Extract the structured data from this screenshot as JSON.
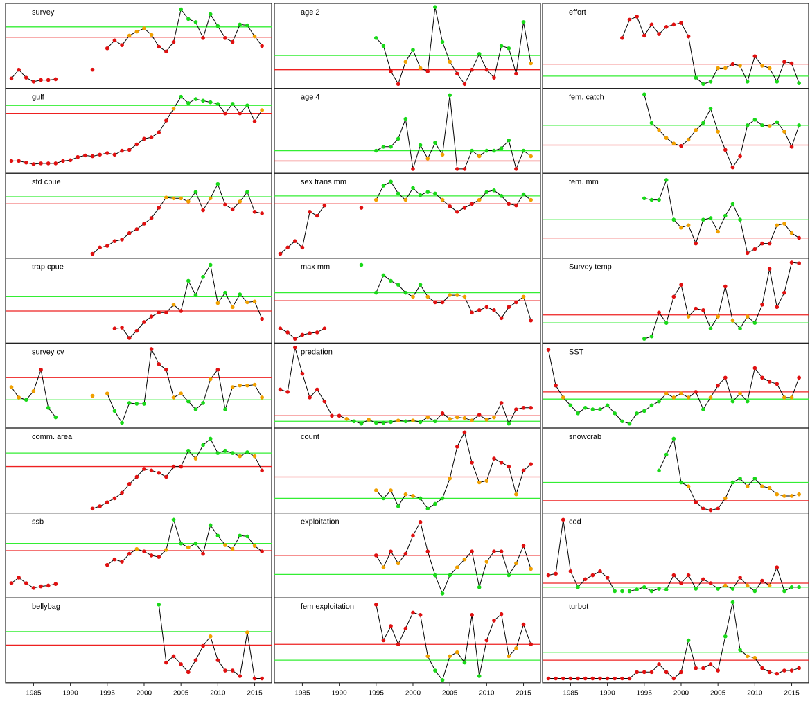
{
  "chart_data": {
    "type": "line",
    "x": [
      1982,
      1983,
      1984,
      1985,
      1986,
      1987,
      1988,
      1989,
      1990,
      1991,
      1992,
      1993,
      1994,
      1995,
      1996,
      1997,
      1998,
      1999,
      2000,
      2001,
      2002,
      2003,
      2004,
      2005,
      2006,
      2007,
      2008,
      2009,
      2010,
      2011,
      2012,
      2013,
      2014,
      2015,
      2016
    ],
    "xlim": [
      1981.2,
      2017.3
    ],
    "xticks": [
      1985,
      1990,
      1995,
      2000,
      2005,
      2010,
      2015
    ],
    "ylim": [
      0,
      100
    ],
    "colors": {
      "good": "#19d819",
      "bad": "#e01010",
      "mid": "#f0a000",
      "line": "#000000",
      "good_line": "#33ee33",
      "bad_line": "#ee2020"
    },
    "panels": [
      {
        "title": "survey",
        "good_level": 74,
        "bad_level": 61,
        "values": [
          9,
          20,
          10,
          5,
          7,
          7,
          8,
          null,
          null,
          null,
          null,
          20,
          null,
          47,
          57,
          51,
          63,
          68,
          72,
          64,
          49,
          43,
          55,
          96,
          84,
          80,
          60,
          90,
          75,
          60,
          55,
          77,
          76,
          62,
          50
        ]
      },
      {
        "title": "gulf",
        "good_level": 82,
        "bad_level": 72,
        "values": [
          12,
          12,
          10,
          8,
          9,
          9,
          9,
          12,
          13,
          17,
          19,
          18,
          20,
          22,
          20,
          25,
          26,
          33,
          40,
          42,
          48,
          63,
          78,
          93,
          85,
          90,
          88,
          86,
          84,
          72,
          84,
          72,
          82,
          62,
          76
        ]
      },
      {
        "title": "std cpue",
        "good_level": 74,
        "bad_level": 65,
        "values": [
          null,
          null,
          null,
          null,
          null,
          null,
          null,
          null,
          null,
          null,
          null,
          2,
          10,
          12,
          18,
          20,
          28,
          33,
          40,
          47,
          60,
          73,
          72,
          72,
          68,
          80,
          57,
          72,
          90,
          64,
          58,
          68,
          80,
          55,
          53
        ]
      },
      {
        "title": "trap cpue",
        "good_level": 55,
        "bad_level": 37,
        "values": [
          null,
          null,
          null,
          null,
          null,
          null,
          null,
          null,
          null,
          null,
          null,
          null,
          null,
          null,
          15,
          16,
          3,
          12,
          23,
          30,
          35,
          35,
          45,
          37,
          75,
          57,
          80,
          95,
          47,
          60,
          42,
          58,
          48,
          49,
          27
        ]
      },
      {
        "title": "survey cv",
        "good_level": 32,
        "bad_level": 60,
        "values": [
          48,
          35,
          32,
          43,
          70,
          22,
          10,
          null,
          null,
          null,
          null,
          37,
          null,
          40,
          18,
          3,
          28,
          27,
          27,
          96,
          77,
          70,
          35,
          40,
          30,
          20,
          28,
          58,
          70,
          20,
          48,
          50,
          50,
          51,
          35
        ]
      },
      {
        "title": "comm. area",
        "good_level": 72,
        "bad_level": 55,
        "values": [
          null,
          null,
          null,
          null,
          null,
          null,
          null,
          null,
          null,
          null,
          null,
          2,
          5,
          10,
          15,
          22,
          33,
          42,
          52,
          50,
          47,
          42,
          55,
          55,
          75,
          65,
          82,
          90,
          72,
          75,
          72,
          68,
          73,
          68,
          50
        ]
      },
      {
        "title": "ssb",
        "good_level": 65,
        "bad_level": 56,
        "values": [
          15,
          22,
          15,
          9,
          11,
          12,
          14,
          null,
          null,
          null,
          null,
          null,
          null,
          38,
          45,
          42,
          52,
          58,
          55,
          50,
          48,
          57,
          95,
          65,
          60,
          65,
          52,
          88,
          75,
          63,
          58,
          75,
          74,
          62,
          55
        ]
      },
      {
        "title": "bellybag",
        "good_level": 61,
        "bad_level": 44,
        "values": [
          null,
          null,
          null,
          null,
          null,
          null,
          null,
          null,
          null,
          null,
          null,
          null,
          null,
          null,
          null,
          null,
          null,
          null,
          null,
          null,
          95,
          22,
          30,
          20,
          10,
          25,
          43,
          55,
          25,
          12,
          12,
          5,
          60,
          2,
          2
        ]
      },
      {
        "title": "age 2",
        "good_level": 38,
        "bad_level": 20,
        "values": [
          null,
          null,
          null,
          null,
          null,
          null,
          null,
          null,
          null,
          null,
          null,
          null,
          null,
          60,
          50,
          18,
          2,
          30,
          45,
          22,
          18,
          99,
          55,
          30,
          15,
          2,
          20,
          40,
          20,
          10,
          50,
          47,
          15,
          80,
          28
        ]
      },
      {
        "title": "age 4",
        "good_level": 25,
        "bad_level": 12,
        "values": [
          null,
          null,
          null,
          null,
          null,
          null,
          null,
          null,
          null,
          null,
          null,
          null,
          null,
          25,
          30,
          30,
          40,
          65,
          2,
          32,
          15,
          35,
          20,
          95,
          2,
          2,
          25,
          18,
          25,
          25,
          28,
          38,
          2,
          25,
          18
        ]
      },
      {
        "title": "sex trans mm",
        "good_level": 75,
        "bad_level": 65,
        "values": [
          2,
          10,
          18,
          10,
          55,
          50,
          63,
          null,
          null,
          null,
          null,
          60,
          null,
          70,
          88,
          93,
          78,
          70,
          85,
          76,
          80,
          78,
          70,
          62,
          55,
          60,
          65,
          70,
          80,
          82,
          75,
          65,
          63,
          77,
          70
        ]
      },
      {
        "title": "max mm",
        "good_level": 60,
        "bad_level": 50,
        "values": [
          15,
          10,
          2,
          7,
          9,
          10,
          15,
          null,
          null,
          null,
          null,
          95,
          null,
          60,
          82,
          75,
          70,
          60,
          55,
          70,
          55,
          48,
          48,
          57,
          57,
          55,
          35,
          38,
          42,
          38,
          28,
          42,
          48,
          55,
          25
        ]
      },
      {
        "title": "predation",
        "good_level": 5,
        "bad_level": 12,
        "values": [
          45,
          42,
          98,
          65,
          35,
          45,
          30,
          12,
          12,
          8,
          5,
          2,
          7,
          3,
          3,
          4,
          6,
          5,
          6,
          4,
          10,
          5,
          15,
          8,
          10,
          9,
          6,
          13,
          7,
          10,
          28,
          2,
          20,
          22,
          22
        ]
      },
      {
        "title": "count",
        "good_level": 15,
        "bad_level": 42,
        "values": [
          null,
          null,
          null,
          null,
          null,
          null,
          null,
          null,
          null,
          null,
          null,
          null,
          null,
          25,
          15,
          25,
          5,
          20,
          18,
          15,
          2,
          8,
          15,
          40,
          80,
          98,
          60,
          35,
          37,
          65,
          60,
          55,
          20,
          50,
          58
        ]
      },
      {
        "title": "exploitation",
        "good_level": 26,
        "bad_level": 50,
        "values": [
          null,
          null,
          null,
          null,
          null,
          null,
          null,
          null,
          null,
          null,
          null,
          null,
          null,
          50,
          35,
          55,
          40,
          52,
          75,
          92,
          55,
          25,
          2,
          25,
          35,
          45,
          55,
          10,
          42,
          55,
          55,
          25,
          40,
          62,
          33
        ]
      },
      {
        "title": "fem exploitation",
        "good_level": 25,
        "bad_level": 45,
        "values": [
          null,
          null,
          null,
          null,
          null,
          null,
          null,
          null,
          null,
          null,
          null,
          null,
          null,
          95,
          50,
          68,
          45,
          65,
          85,
          82,
          30,
          12,
          0,
          30,
          35,
          22,
          82,
          5,
          50,
          75,
          83,
          30,
          40,
          70,
          45
        ]
      },
      {
        "title": "effort",
        "good_level": 12,
        "bad_level": 27,
        "values": [
          null,
          null,
          null,
          null,
          null,
          null,
          null,
          null,
          null,
          null,
          60,
          83,
          87,
          63,
          77,
          65,
          74,
          77,
          79,
          62,
          10,
          2,
          5,
          22,
          22,
          27,
          25,
          5,
          37,
          25,
          22,
          5,
          30,
          28,
          3
        ]
      },
      {
        "title": "fem. catch",
        "good_level": 57,
        "bad_level": 32,
        "values": [
          null,
          null,
          null,
          null,
          null,
          null,
          null,
          null,
          null,
          null,
          null,
          null,
          null,
          96,
          60,
          51,
          41,
          34,
          31,
          39,
          51,
          60,
          78,
          49,
          26,
          4,
          18,
          57,
          64,
          57,
          56,
          61,
          49,
          30,
          57
        ]
      },
      {
        "title": "fem. mm",
        "good_level": 45,
        "bad_level": 22,
        "values": [
          null,
          null,
          null,
          null,
          null,
          null,
          null,
          null,
          null,
          null,
          null,
          null,
          null,
          72,
          70,
          70,
          95,
          45,
          35,
          38,
          15,
          45,
          47,
          30,
          50,
          65,
          45,
          3,
          8,
          15,
          15,
          38,
          40,
          28,
          22
        ]
      },
      {
        "title": "Survey temp",
        "good_level": 22,
        "bad_level": 32,
        "values": [
          null,
          null,
          null,
          null,
          null,
          null,
          null,
          null,
          null,
          null,
          null,
          null,
          null,
          2,
          5,
          35,
          22,
          55,
          70,
          30,
          40,
          38,
          15,
          30,
          68,
          25,
          15,
          30,
          22,
          45,
          90,
          42,
          60,
          98,
          97
        ]
      },
      {
        "title": "SST",
        "good_level": 33,
        "bad_level": 42,
        "values": [
          95,
          50,
          35,
          25,
          15,
          22,
          20,
          20,
          25,
          15,
          5,
          2,
          15,
          18,
          25,
          30,
          40,
          35,
          40,
          35,
          42,
          20,
          35,
          50,
          60,
          30,
          40,
          30,
          72,
          60,
          55,
          52,
          35,
          35,
          60
        ]
      },
      {
        "title": "snowcrab",
        "good_level": 35,
        "bad_level": 12,
        "values": [
          null,
          null,
          null,
          null,
          null,
          null,
          null,
          null,
          null,
          null,
          null,
          null,
          null,
          null,
          null,
          50,
          70,
          90,
          35,
          30,
          10,
          2,
          0,
          2,
          15,
          35,
          40,
          30,
          40,
          30,
          28,
          20,
          18,
          18,
          20
        ]
      },
      {
        "title": "cod",
        "good_level": 10,
        "bad_level": 15,
        "values": [
          25,
          27,
          95,
          30,
          10,
          20,
          25,
          30,
          22,
          5,
          5,
          5,
          7,
          10,
          5,
          8,
          7,
          25,
          15,
          25,
          8,
          20,
          15,
          8,
          12,
          8,
          22,
          12,
          5,
          18,
          12,
          35,
          5,
          10,
          10
        ]
      },
      {
        "title": "turbot",
        "good_level": 35,
        "bad_level": 25,
        "values": [
          2,
          2,
          2,
          2,
          2,
          2,
          2,
          2,
          2,
          2,
          2,
          2,
          10,
          10,
          10,
          20,
          10,
          2,
          10,
          50,
          15,
          15,
          20,
          12,
          55,
          98,
          38,
          30,
          28,
          15,
          10,
          8,
          12,
          12,
          15
        ]
      }
    ]
  }
}
